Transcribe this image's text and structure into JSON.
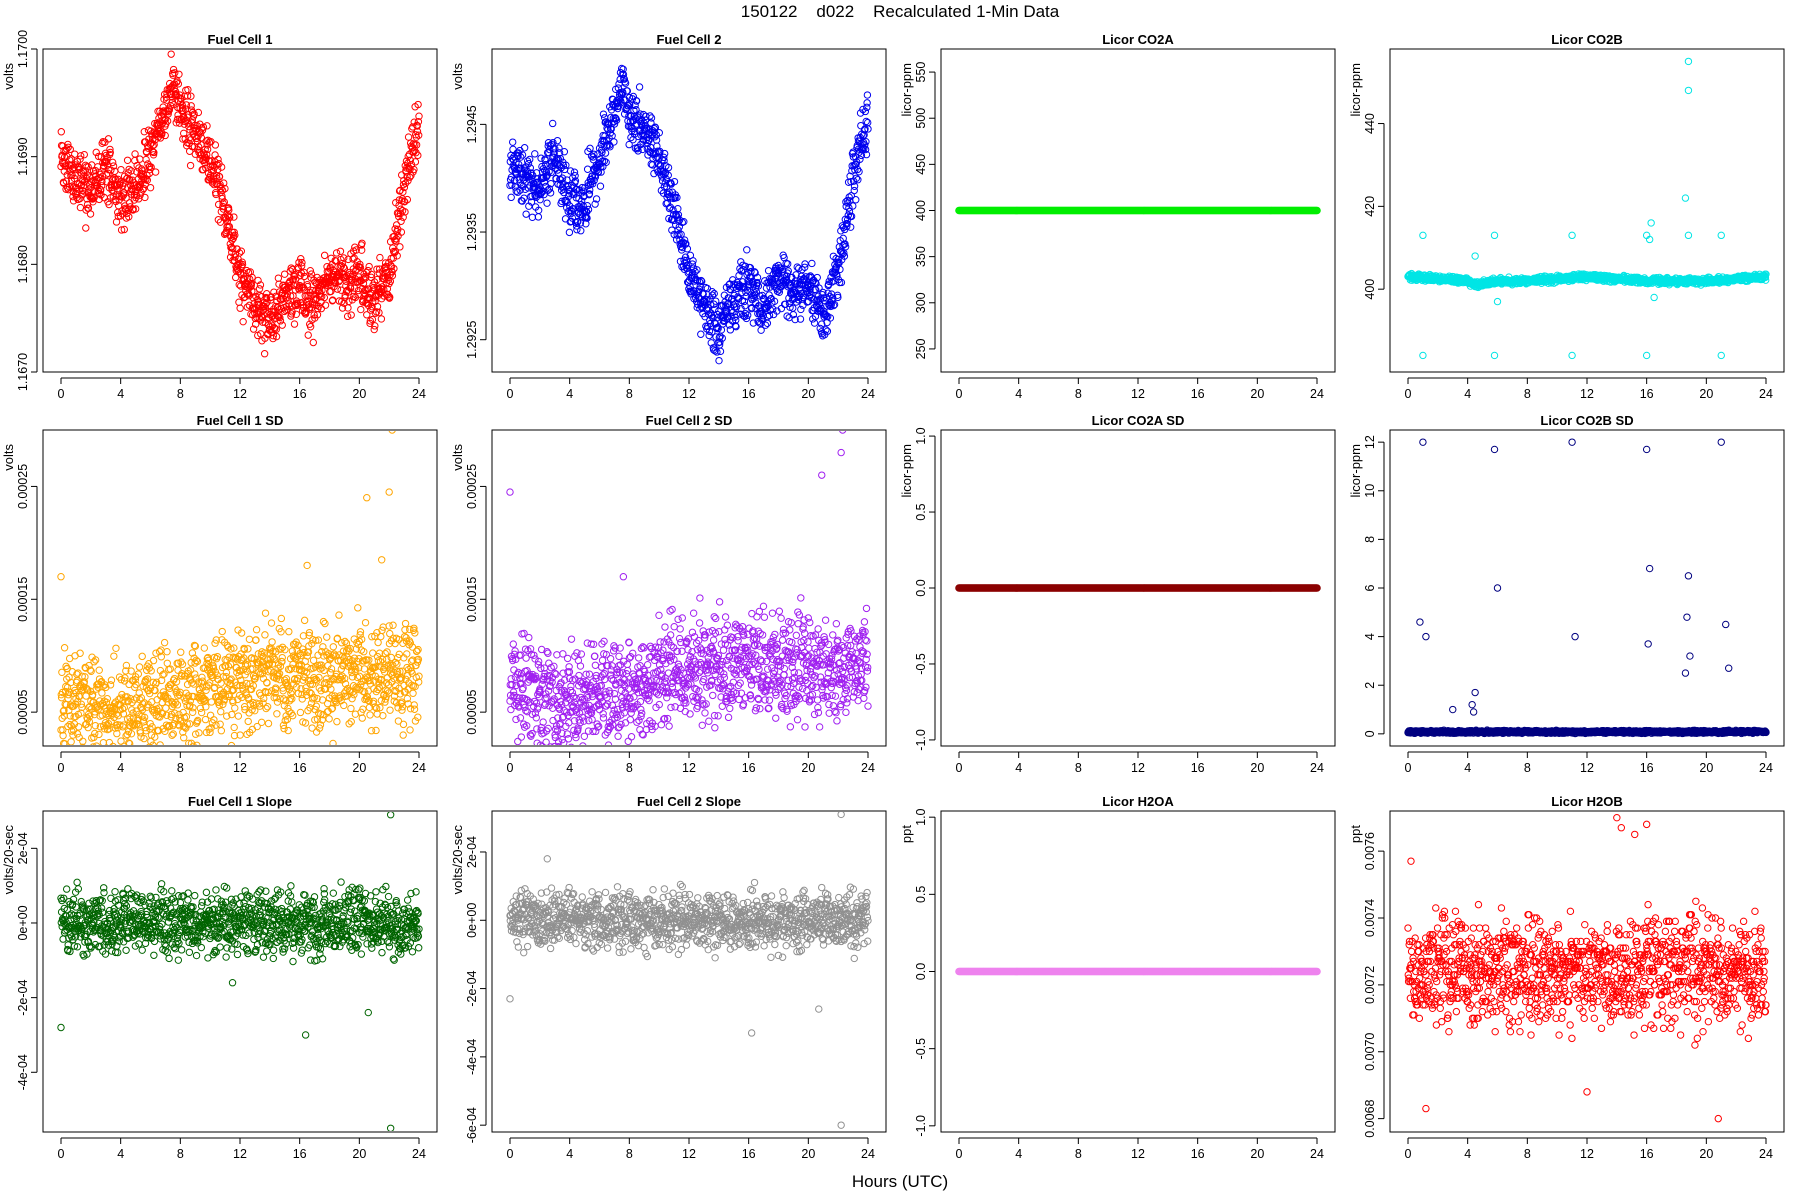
{
  "figure": {
    "title": "150122    d022    Recalculated 1-Min Data",
    "xlabel": "Hours (UTC)"
  },
  "chart_data": [
    {
      "type": "scatter",
      "title": "Fuel Cell 1",
      "xlabel": "",
      "ylabel": "volts",
      "color": "#ff0000",
      "marker": "open-circle",
      "xlim": [
        0,
        24
      ],
      "ylim": [
        1.167,
        1.17
      ],
      "xticks": [
        "0",
        "4",
        "8",
        "12",
        "16",
        "20",
        "24"
      ],
      "yticks": [
        {
          "v": 1.167,
          "t": "1.1670"
        },
        {
          "v": 1.168,
          "t": "1.1680"
        },
        {
          "v": 1.169,
          "t": "1.1690"
        },
        {
          "v": 1.17,
          "t": "1.1700"
        }
      ],
      "series": [
        {
          "x": [
            0,
            1,
            2,
            3,
            4,
            5,
            6,
            7,
            7.5,
            8,
            9,
            10,
            11,
            12,
            13,
            14,
            15,
            16,
            17,
            18,
            19,
            20,
            21,
            22,
            23,
            24
          ],
          "y": [
            1.1689,
            1.1688,
            1.1687,
            1.1689,
            1.1686,
            1.1687,
            1.169,
            1.1694,
            1.1697,
            1.1694,
            1.1692,
            1.169,
            1.1685,
            1.1679,
            1.1676,
            1.1675,
            1.1677,
            1.1678,
            1.1676,
            1.1679,
            1.1678,
            1.1679,
            1.1677,
            1.1679,
            1.1687,
            1.1693
          ],
          "spread": 0.0003
        }
      ]
    },
    {
      "type": "scatter",
      "title": "Fuel Cell 2",
      "xlabel": "",
      "ylabel": "volts",
      "color": "#0000ee",
      "marker": "open-circle",
      "xlim": [
        0,
        24
      ],
      "ylim": [
        1.2922,
        1.2952
      ],
      "xticks": [
        "0",
        "4",
        "8",
        "12",
        "16",
        "20",
        "24"
      ],
      "yticks": [
        {
          "v": 1.2925,
          "t": "1.2925"
        },
        {
          "v": 1.2935,
          "t": "1.2935"
        },
        {
          "v": 1.2945,
          "t": "1.2945"
        }
      ],
      "series": [
        {
          "x": [
            0,
            1,
            2,
            3,
            4,
            5,
            6,
            7,
            7.5,
            8,
            9,
            10,
            11,
            12,
            13,
            14,
            15,
            16,
            17,
            18,
            19,
            20,
            21,
            22,
            23,
            24
          ],
          "y": [
            1.2941,
            1.294,
            1.2939,
            1.2942,
            1.2938,
            1.2938,
            1.2942,
            1.2946,
            1.2949,
            1.2946,
            1.2944,
            1.2942,
            1.2937,
            1.2931,
            1.2928,
            1.2926,
            1.2929,
            1.293,
            1.2928,
            1.2931,
            1.2929,
            1.293,
            1.2927,
            1.2931,
            1.294,
            1.2946
          ],
          "spread": 0.0003
        }
      ]
    },
    {
      "type": "scatter",
      "title": "Licor CO2A",
      "xlabel": "",
      "ylabel": "licor-ppm",
      "color": "#00ee00",
      "marker": "open-circle",
      "xlim": [
        0,
        24
      ],
      "ylim": [
        225,
        575
      ],
      "xticks": [
        "0",
        "4",
        "8",
        "12",
        "16",
        "20",
        "24"
      ],
      "yticks": [
        {
          "v": 250,
          "t": "250"
        },
        {
          "v": 300,
          "t": "300"
        },
        {
          "v": 350,
          "t": "350"
        },
        {
          "v": 400,
          "t": "400"
        },
        {
          "v": 450,
          "t": "450"
        },
        {
          "v": 500,
          "t": "500"
        },
        {
          "v": 550,
          "t": "550"
        }
      ],
      "series": [
        {
          "x": [
            0,
            24
          ],
          "y": [
            400,
            400
          ],
          "spread": 0
        }
      ]
    },
    {
      "type": "scatter",
      "title": "Licor CO2B",
      "xlabel": "",
      "ylabel": "licor-ppm",
      "color": "#00e5e5",
      "marker": "open-circle",
      "xlim": [
        0,
        24
      ],
      "ylim": [
        380,
        458
      ],
      "xticks": [
        "0",
        "4",
        "8",
        "12",
        "16",
        "20",
        "24"
      ],
      "yticks": [
        {
          "v": 400,
          "t": "400"
        },
        {
          "v": 420,
          "t": "420"
        },
        {
          "v": 440,
          "t": "440"
        }
      ],
      "series": [
        {
          "x": [
            0,
            4,
            4.5,
            6,
            8,
            12,
            16,
            20,
            24
          ],
          "y": [
            403,
            402,
            401,
            402,
            402,
            403,
            402,
            402,
            403
          ],
          "spread": 0.8
        }
      ],
      "outliers": {
        "x": [
          1,
          1,
          5.8,
          5.8,
          11,
          11,
          16,
          16,
          18.8,
          18.8,
          18.8,
          21,
          21,
          4.5,
          16.2,
          16.3,
          16.5,
          6,
          18.6
        ],
        "y": [
          413,
          384,
          413,
          384,
          413,
          384,
          413,
          384,
          455,
          448,
          413,
          413,
          384,
          408,
          412,
          416,
          398,
          397,
          422
        ]
      }
    },
    {
      "type": "scatter",
      "title": "Fuel Cell 1 SD",
      "xlabel": "",
      "ylabel": "volts",
      "color": "#ffa500",
      "marker": "open-circle",
      "xlim": [
        0,
        24
      ],
      "ylim": [
        2e-05,
        0.0003
      ],
      "xticks": [
        "0",
        "4",
        "8",
        "12",
        "16",
        "20",
        "24"
      ],
      "yticks": [
        {
          "v": 5e-05,
          "t": "0.00005"
        },
        {
          "v": 0.00015,
          "t": "0.00015"
        },
        {
          "v": 0.00025,
          "t": "0.00025"
        }
      ],
      "series": [
        {
          "x": [
            0,
            4,
            8,
            12,
            16,
            20,
            24
          ],
          "y": [
            6e-05,
            5e-05,
            6e-05,
            8e-05,
            8e-05,
            8e-05,
            8e-05
          ],
          "spread": 5e-05
        }
      ],
      "outliers": {
        "x": [
          0,
          22.2,
          22,
          20.5,
          16.5,
          21.5
        ],
        "y": [
          0.00017,
          0.0003,
          0.000245,
          0.00024,
          0.00018,
          0.000185
        ]
      }
    },
    {
      "type": "scatter",
      "title": "Fuel Cell 2 SD",
      "xlabel": "",
      "ylabel": "volts",
      "color": "#a020f0",
      "marker": "open-circle",
      "xlim": [
        0,
        24
      ],
      "ylim": [
        2e-05,
        0.0003
      ],
      "xticks": [
        "0",
        "4",
        "8",
        "12",
        "16",
        "20",
        "24"
      ],
      "yticks": [
        {
          "v": 5e-05,
          "t": "0.00005"
        },
        {
          "v": 0.00015,
          "t": "0.00015"
        },
        {
          "v": 0.00025,
          "t": "0.00025"
        }
      ],
      "series": [
        {
          "x": [
            0,
            4,
            8,
            12,
            16,
            20,
            24
          ],
          "y": [
            7e-05,
            6e-05,
            7e-05,
            9e-05,
            9e-05,
            9e-05,
            9e-05
          ],
          "spread": 5e-05
        }
      ],
      "outliers": {
        "x": [
          0,
          22.3,
          22.2,
          20.9,
          7.6
        ],
        "y": [
          0.000245,
          0.0003,
          0.00028,
          0.00026,
          0.00017
        ]
      }
    },
    {
      "type": "scatter",
      "title": "Licor CO2A SD",
      "xlabel": "",
      "ylabel": "licor-ppm",
      "color": "#8b0000",
      "marker": "open-circle",
      "xlim": [
        0,
        24
      ],
      "ylim": [
        -1.04,
        1.04
      ],
      "xticks": [
        "0",
        "4",
        "8",
        "12",
        "16",
        "20",
        "24"
      ],
      "yticks": [
        {
          "v": -1,
          "t": "-1.0"
        },
        {
          "v": -0.5,
          "t": "-0.5"
        },
        {
          "v": 0,
          "t": "0.0"
        },
        {
          "v": 0.5,
          "t": "0.5"
        },
        {
          "v": 1,
          "t": "1.0"
        }
      ],
      "series": [
        {
          "x": [
            0,
            24
          ],
          "y": [
            0,
            0
          ],
          "spread": 0
        }
      ]
    },
    {
      "type": "scatter",
      "title": "Licor CO2B SD",
      "xlabel": "",
      "ylabel": "licor-ppm",
      "color": "#000080",
      "marker": "open-circle",
      "xlim": [
        0,
        24
      ],
      "ylim": [
        -0.5,
        12.5
      ],
      "xticks": [
        "0",
        "4",
        "8",
        "12",
        "16",
        "20",
        "24"
      ],
      "yticks": [
        {
          "v": 0,
          "t": "0"
        },
        {
          "v": 2,
          "t": "2"
        },
        {
          "v": 4,
          "t": "4"
        },
        {
          "v": 6,
          "t": "6"
        },
        {
          "v": 8,
          "t": "8"
        },
        {
          "v": 10,
          "t": "10"
        },
        {
          "v": 12,
          "t": "12"
        }
      ],
      "series": [
        {
          "x": [
            0,
            24
          ],
          "y": [
            0.08,
            0.08
          ],
          "spread": 0.06
        }
      ],
      "outliers": {
        "x": [
          1,
          0.8,
          1.2,
          4.5,
          4.3,
          5.8,
          6,
          11,
          11.2,
          16,
          16.2,
          16.1,
          18.8,
          18.7,
          18.9,
          18.6,
          21,
          21.3,
          21.5,
          3,
          4.4
        ],
        "y": [
          12,
          4.6,
          4.0,
          1.7,
          1.2,
          11.7,
          6.0,
          12,
          4.0,
          11.7,
          6.8,
          3.7,
          6.5,
          4.8,
          3.2,
          2.5,
          12,
          4.5,
          2.7,
          1.0,
          0.9
        ]
      }
    },
    {
      "type": "scatter",
      "title": "Fuel Cell 1 Slope",
      "xlabel": "",
      "ylabel": "volts/20-sec",
      "color": "#006400",
      "marker": "open-circle",
      "xlim": [
        0,
        24
      ],
      "ylim": [
        -0.00056,
        0.0003
      ],
      "xticks": [
        "0",
        "4",
        "8",
        "12",
        "16",
        "20",
        "24"
      ],
      "yticks": [
        {
          "v": -0.0004,
          "t": "-4e-04"
        },
        {
          "v": -0.0002,
          "t": "-2e-04"
        },
        {
          "v": 0,
          "t": "0e+00"
        },
        {
          "v": 0.0002,
          "t": "2e-04"
        }
      ],
      "series": [
        {
          "x": [
            0,
            24
          ],
          "y": [
            0,
            0
          ],
          "spread": 9e-05
        }
      ],
      "outliers": {
        "x": [
          0,
          22.1,
          22.1,
          16.4,
          20.6,
          11.5
        ],
        "y": [
          -0.00028,
          0.00029,
          -0.00055,
          -0.0003,
          -0.00024,
          -0.00016
        ]
      }
    },
    {
      "type": "scatter",
      "title": "Fuel Cell 2 Slope",
      "xlabel": "",
      "ylabel": "volts/20-sec",
      "color": "#909090",
      "marker": "open-circle",
      "xlim": [
        0,
        24
      ],
      "ylim": [
        -0.00062,
        0.00032
      ],
      "xticks": [
        "0",
        "4",
        "8",
        "12",
        "16",
        "20",
        "24"
      ],
      "yticks": [
        {
          "v": -0.0006,
          "t": "-6e-04"
        },
        {
          "v": -0.0004,
          "t": "-4e-04"
        },
        {
          "v": -0.0002,
          "t": "-2e-04"
        },
        {
          "v": 0,
          "t": "0e+00"
        },
        {
          "v": 0.0002,
          "t": "2e-04"
        }
      ],
      "series": [
        {
          "x": [
            0,
            24
          ],
          "y": [
            0,
            0
          ],
          "spread": 9e-05
        }
      ],
      "outliers": {
        "x": [
          0,
          22.2,
          22.2,
          16.2,
          20.7,
          2.5
        ],
        "y": [
          -0.00023,
          0.00031,
          -0.0006,
          -0.00033,
          -0.00026,
          0.00018
        ]
      }
    },
    {
      "type": "scatter",
      "title": "Licor H2OA",
      "xlabel": "",
      "ylabel": "ppt",
      "color": "#ee82ee",
      "marker": "open-circle",
      "xlim": [
        0,
        24
      ],
      "ylim": [
        -1.04,
        1.04
      ],
      "xticks": [
        "0",
        "4",
        "8",
        "12",
        "16",
        "20",
        "24"
      ],
      "yticks": [
        {
          "v": -1,
          "t": "-1.0"
        },
        {
          "v": -0.5,
          "t": "-0.5"
        },
        {
          "v": 0,
          "t": "0.0"
        },
        {
          "v": 0.5,
          "t": "0.5"
        },
        {
          "v": 1,
          "t": "1.0"
        }
      ],
      "series": [
        {
          "x": [
            0,
            24
          ],
          "y": [
            0,
            0
          ],
          "spread": 0
        }
      ]
    },
    {
      "type": "scatter",
      "title": "Licor H2OB",
      "xlabel": "",
      "ylabel": "ppt",
      "color": "#ff0000",
      "marker": "open-circle",
      "xlim": [
        0,
        24
      ],
      "ylim": [
        0.00676,
        0.00772
      ],
      "xticks": [
        "0",
        "4",
        "8",
        "12",
        "16",
        "20",
        "24"
      ],
      "yticks": [
        {
          "v": 0.0068,
          "t": "0.0068"
        },
        {
          "v": 0.007,
          "t": "0.0070"
        },
        {
          "v": 0.0072,
          "t": "0.0072"
        },
        {
          "v": 0.0074,
          "t": "0.0074"
        },
        {
          "v": 0.0076,
          "t": "0.0076"
        }
      ],
      "series": [
        {
          "x": [
            0,
            24
          ],
          "y": [
            0.00724,
            0.00724
          ],
          "spread": 0.00017,
          "quantum": 1e-05
        }
      ],
      "outliers": {
        "x": [
          14,
          14.3,
          16,
          15.2,
          20.8,
          0.2,
          12,
          1.2
        ],
        "y": [
          0.0077,
          0.00767,
          0.00768,
          0.00765,
          0.0068,
          0.00757,
          0.00688,
          0.00683
        ]
      }
    }
  ]
}
